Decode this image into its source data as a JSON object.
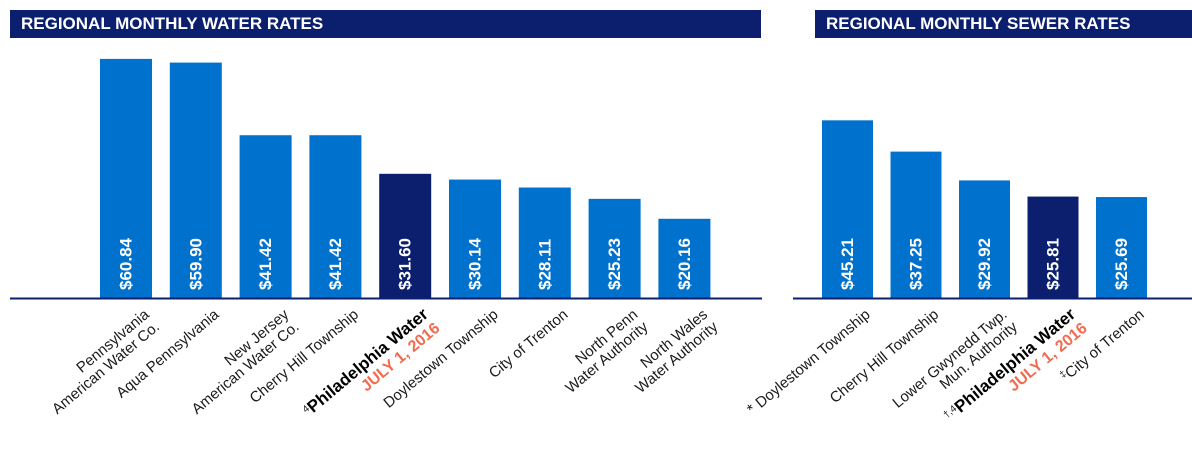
{
  "chart_data": [
    {
      "type": "bar",
      "title": "REGIONAL MONTHLY WATER RATES",
      "accent_color": "#0072CE",
      "highlight_color": "#0B1F6E",
      "date_color": "#F26B4F",
      "categories": [
        {
          "lines": [
            "Pennsylvania",
            "American Water Co."
          ],
          "prefix": "",
          "date": "",
          "highlight": false
        },
        {
          "lines": [
            "Aqua Pennsylvania"
          ],
          "prefix": "",
          "date": "",
          "highlight": false
        },
        {
          "lines": [
            "New Jersey",
            "American Water Co."
          ],
          "prefix": "",
          "date": "",
          "highlight": false
        },
        {
          "lines": [
            "Cherry Hill Township"
          ],
          "prefix": "",
          "date": "",
          "highlight": false
        },
        {
          "lines": [
            "Philadelphia Water"
          ],
          "prefix": "4",
          "date": "JULY 1, 2016",
          "highlight": true
        },
        {
          "lines": [
            "Doylestown Township"
          ],
          "prefix": "",
          "date": "",
          "highlight": false
        },
        {
          "lines": [
            "City of Trenton"
          ],
          "prefix": "",
          "date": "",
          "highlight": false
        },
        {
          "lines": [
            "North Penn",
            "Water Authority"
          ],
          "prefix": "",
          "date": "",
          "highlight": false
        },
        {
          "lines": [
            "North Wales",
            "Water Authority"
          ],
          "prefix": "",
          "date": "",
          "highlight": false
        }
      ],
      "values": [
        60.84,
        59.9,
        41.42,
        41.42,
        31.6,
        30.14,
        28.11,
        25.23,
        20.16
      ],
      "value_labels": [
        "$60.84",
        "$59.90",
        "$41.42",
        "$41.42",
        "$31.60",
        "$30.14",
        "$28.11",
        "$25.23",
        "$20.16"
      ],
      "ylim": [
        0,
        62
      ]
    },
    {
      "type": "bar",
      "title": "REGIONAL MONTHLY SEWER RATES",
      "accent_color": "#0072CE",
      "highlight_color": "#0B1F6E",
      "date_color": "#F26B4F",
      "categories": [
        {
          "lines": [
            "Doylestown Township"
          ],
          "prefix": "*",
          "date": "",
          "highlight": false
        },
        {
          "lines": [
            "Cherry Hill Township"
          ],
          "prefix": "",
          "date": "",
          "highlight": false
        },
        {
          "lines": [
            "Lower Gwynedd Twp.",
            "Mun. Authority"
          ],
          "prefix": "",
          "date": "",
          "highlight": false
        },
        {
          "lines": [
            "Philadelphia Water"
          ],
          "prefix": "†,4",
          "date": "JULY 1, 2016",
          "highlight": true
        },
        {
          "lines": [
            "City of Trenton"
          ],
          "prefix": "‡",
          "date": "",
          "highlight": false
        }
      ],
      "values": [
        45.21,
        37.25,
        29.92,
        25.81,
        25.69
      ],
      "value_labels": [
        "$45.21",
        "$37.25",
        "$29.92",
        "$25.81",
        "$25.69"
      ],
      "ylim": [
        0,
        62
      ]
    }
  ]
}
